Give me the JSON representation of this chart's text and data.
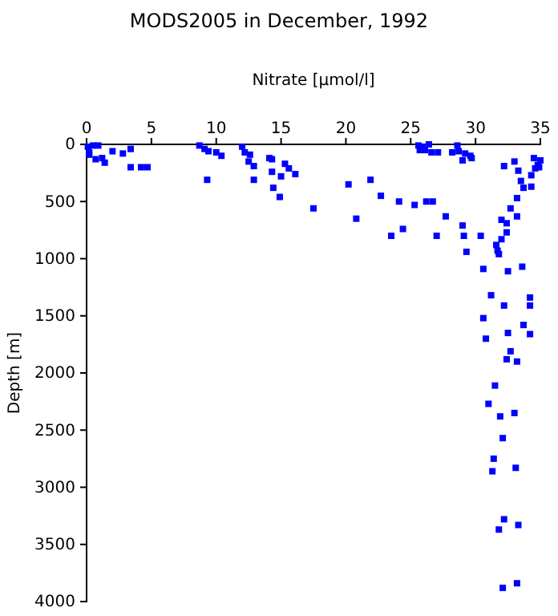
{
  "chart_data": {
    "type": "scatter",
    "title": "MODS2005 in December, 1992",
    "xlabel": "Nitrate [µmol/l]",
    "ylabel": "Depth [m]",
    "xlim": [
      0,
      35
    ],
    "xticks": [
      0,
      5,
      10,
      15,
      20,
      25,
      30,
      35
    ],
    "ylim": [
      4000,
      0
    ],
    "yticks": [
      0,
      500,
      1000,
      1500,
      2000,
      2500,
      3000,
      3500,
      4000
    ],
    "marker": "square",
    "series": [
      {
        "color": "#0000ff",
        "x": [
          0.1,
          0.2,
          0.2,
          0.5,
          0.9,
          0.7,
          1.2,
          1.4,
          2.0,
          2.8,
          3.4,
          3.4,
          4.2,
          4.7,
          8.7,
          9.1,
          9.4,
          9.3,
          10.0,
          10.4,
          12.0,
          12.2,
          12.6,
          12.5,
          12.9,
          12.9,
          14.1,
          14.3,
          14.3,
          14.4,
          14.9,
          15.0,
          15.3,
          15.6,
          16.1,
          17.5,
          20.2,
          20.8,
          21.9,
          22.7,
          23.5,
          24.1,
          24.4,
          25.3,
          25.6,
          25.7,
          25.9,
          26.1,
          26.4,
          26.2,
          26.7,
          26.6,
          27.0,
          27.1,
          27.7,
          28.2,
          28.6,
          28.7,
          29.0,
          29.0,
          29.1,
          29.2,
          29.3,
          29.6,
          29.7,
          30.4,
          30.6,
          31.6,
          31.7,
          31.8,
          32.0,
          32.0,
          32.2,
          32.4,
          32.4,
          32.5,
          32.7,
          33.0,
          33.2,
          33.2,
          33.3,
          33.5,
          33.6,
          33.7,
          34.3,
          34.3,
          34.5,
          34.6,
          34.8,
          34.9,
          35.0,
          31.2,
          34.2,
          32.2,
          34.2,
          30.6,
          33.7,
          32.5,
          34.2,
          30.8,
          32.7,
          32.4,
          33.2,
          31.5,
          31.0,
          31.9,
          33.0,
          32.1,
          31.4,
          31.3,
          33.1,
          32.2,
          33.3,
          31.8,
          33.2,
          32.1
        ],
        "values": [
          20,
          70,
          90,
          10,
          10,
          130,
          120,
          160,
          60,
          80,
          40,
          200,
          200,
          200,
          10,
          40,
          60,
          310,
          70,
          100,
          20,
          70,
          90,
          150,
          190,
          310,
          120,
          130,
          240,
          380,
          460,
          280,
          170,
          210,
          260,
          560,
          350,
          650,
          310,
          450,
          800,
          500,
          740,
          530,
          10,
          50,
          20,
          50,
          0,
          500,
          500,
          70,
          800,
          70,
          630,
          70,
          10,
          60,
          140,
          710,
          800,
          80,
          940,
          100,
          120,
          800,
          1090,
          880,
          930,
          960,
          830,
          660,
          190,
          690,
          770,
          1110,
          560,
          150,
          630,
          470,
          230,
          320,
          1070,
          380,
          270,
          370,
          120,
          210,
          180,
          200,
          140,
          1320,
          1340,
          1410,
          1410,
          1520,
          1580,
          1650,
          1660,
          1700,
          1810,
          1880,
          1900,
          2110,
          2270,
          2380,
          2350,
          2570,
          2750,
          2860,
          2830,
          3280,
          3330,
          3370,
          3840,
          3880
        ]
      }
    ]
  }
}
